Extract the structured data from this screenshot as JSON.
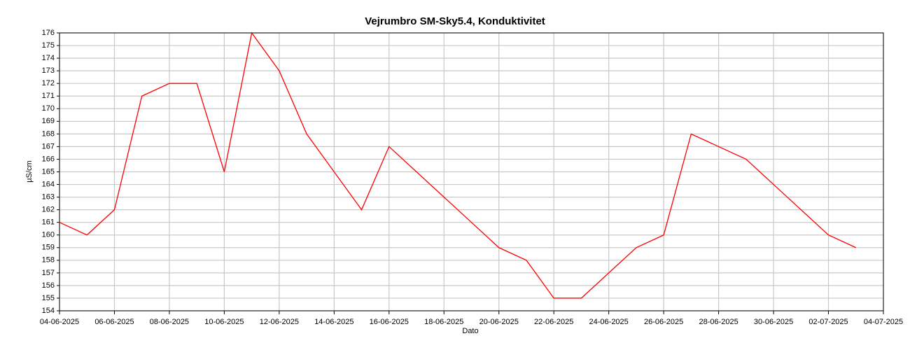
{
  "chart_data": {
    "type": "line",
    "title": "Vejrumbro SM-Sky5.4, Konduktivitet",
    "x_label": "Dato",
    "y_label": "µS/cm",
    "x": [
      "04-06-2025",
      "05-06-2025",
      "06-06-2025",
      "07-06-2025",
      "08-06-2025",
      "09-06-2025",
      "10-06-2025",
      "11-06-2025",
      "12-06-2025",
      "13-06-2025",
      "14-06-2025",
      "15-06-2025",
      "16-06-2025",
      "17-06-2025",
      "18-06-2025",
      "19-06-2025",
      "20-06-2025",
      "21-06-2025",
      "22-06-2025",
      "23-06-2025",
      "24-06-2025",
      "25-06-2025",
      "26-06-2025",
      "27-06-2025",
      "28-06-2025",
      "29-06-2025",
      "30-06-2025",
      "01-07-2025",
      "02-07-2025",
      "03-07-2025"
    ],
    "series": [
      {
        "name": "Konduktivitet",
        "color": "#ff0000",
        "values": [
          161,
          160,
          162,
          171,
          172,
          172,
          165,
          176,
          173,
          168,
          165,
          162,
          167,
          165,
          163,
          161,
          159,
          158,
          155,
          155,
          157,
          159,
          160,
          168,
          167,
          166,
          164,
          162,
          160,
          159
        ]
      }
    ],
    "xlim": [
      "04-06-2025",
      "04-07-2025"
    ],
    "xticks": [
      "04-06-2025",
      "06-06-2025",
      "08-06-2025",
      "10-06-2025",
      "12-06-2025",
      "14-06-2025",
      "16-06-2025",
      "18-06-2025",
      "20-06-2025",
      "22-06-2025",
      "24-06-2025",
      "26-06-2025",
      "28-06-2025",
      "30-06-2025",
      "02-07-2025",
      "04-07-2025"
    ],
    "ylim": [
      154,
      176
    ],
    "yticks": [
      154,
      155,
      156,
      157,
      158,
      159,
      160,
      161,
      162,
      163,
      164,
      165,
      166,
      167,
      168,
      169,
      170,
      171,
      172,
      173,
      174,
      175,
      176
    ],
    "grid": true
  }
}
